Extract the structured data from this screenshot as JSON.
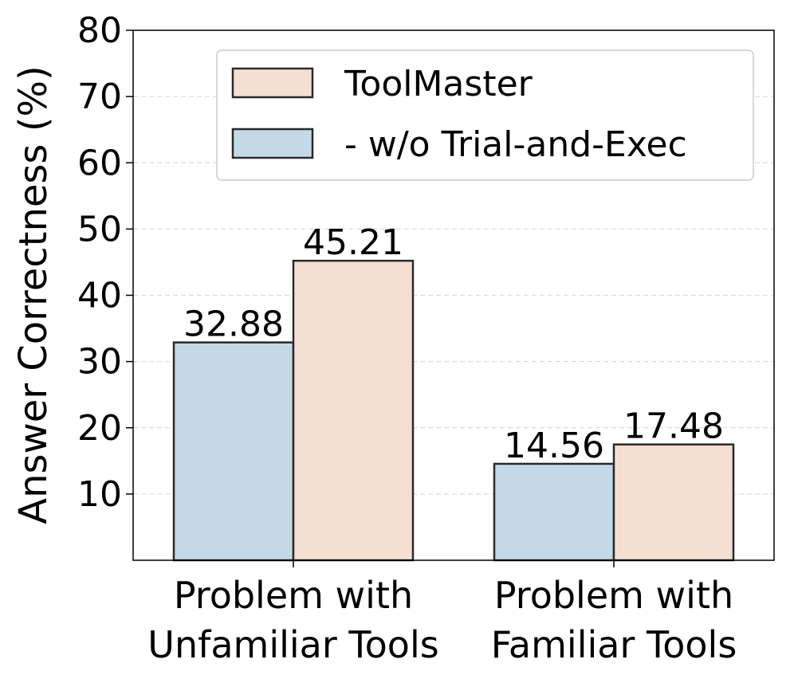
{
  "chart_data": {
    "type": "bar",
    "y_label": "Answer Correctness (%)",
    "categories": [
      "Problem with\nUnfamiliar Tools",
      "Problem with\nFamiliar Tools"
    ],
    "series": [
      {
        "name": "ToolMaster",
        "color": "#f5dfd3",
        "values": [
          45.21,
          17.48
        ]
      },
      {
        "name": "- w/o Trial-and-Exec",
        "color": "#c3d9e6",
        "values": [
          32.88,
          14.56
        ]
      }
    ],
    "ylim": [
      0,
      80
    ],
    "yticks": [
      10,
      20,
      30,
      40,
      50,
      60,
      70,
      80
    ],
    "grid": true,
    "legend": "upper right"
  }
}
